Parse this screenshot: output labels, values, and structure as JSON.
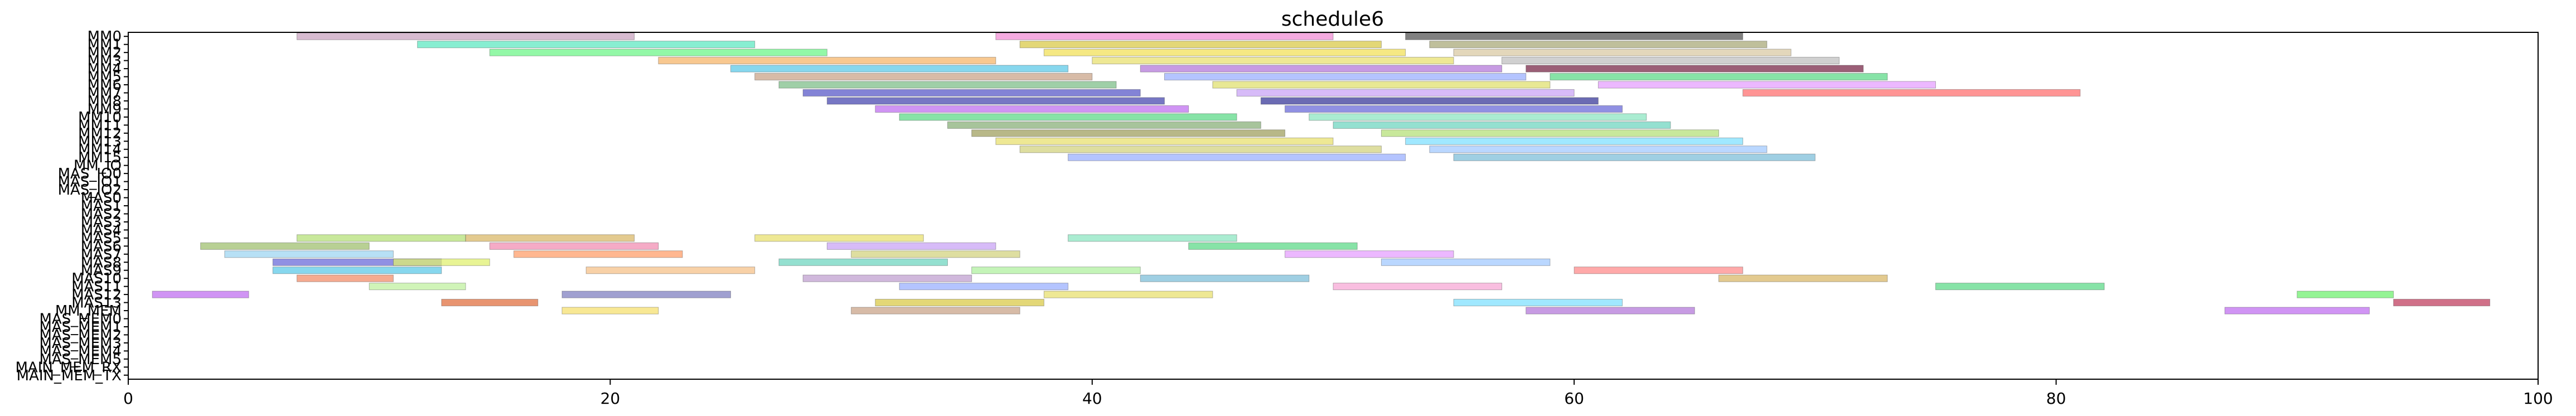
{
  "chart_data": {
    "type": "bar",
    "orientation": "horizontal",
    "title": "schedule6",
    "xlabel": "",
    "ylabel": "",
    "xlim": [
      0,
      100
    ],
    "x_ticks": [
      0,
      20,
      40,
      60,
      80,
      100
    ],
    "x_tick_labels": [
      "0",
      "20",
      "40",
      "60",
      "80",
      "100"
    ],
    "grid": false,
    "legend": "none",
    "rows": [
      "MM0",
      "MM1",
      "MM2",
      "MM3",
      "MM4",
      "MM5",
      "MM6",
      "MM7",
      "MM8",
      "MM9",
      "MM10",
      "MM11",
      "MM12",
      "MM13",
      "MM14",
      "MM15",
      "MM_IO",
      "MAS_IO0",
      "MAS_IO1",
      "MAS_IO2",
      "MAS0",
      "MAS1",
      "MAS2",
      "MAS3",
      "MAS4",
      "MAS5",
      "MAS6",
      "MAS7",
      "MAS8",
      "MAS9",
      "MAS10",
      "MAS11",
      "MAS12",
      "MAS13",
      "MM_MEM",
      "MAS_MEM0",
      "MAS_MEM1",
      "MAS_MEM2",
      "MAS_MEM3",
      "MAS_MEM4",
      "MAS_MEM5",
      "MAIN_MEM_RX",
      "MAIN_MEM_TX"
    ],
    "palette": [
      "#d5a3c8",
      "#7dffb1",
      "#5fd98a",
      "#c9a4f5",
      "#f7a8d6",
      "#d9b86a",
      "#9fd6f2",
      "#ff8c8c",
      "#b6e07a",
      "#e8e070",
      "#7fbfd9",
      "#f28fb3",
      "#a3c9ff",
      "#f5c28a",
      "#8ee6c2",
      "#c0c0c0",
      "#ff9f6b",
      "#9bb0ff",
      "#e6a0ff",
      "#70d6c0",
      "#d3d380",
      "#ffb3b3",
      "#80e0ff",
      "#b0f0a0"
    ],
    "tasks": [
      {
        "row": "MM0",
        "start": 7,
        "end": 21,
        "color": "#c9a4c0"
      },
      {
        "row": "MM0",
        "start": 36,
        "end": 50,
        "color": "#f28fd6"
      },
      {
        "row": "MM0",
        "start": 53,
        "end": 67,
        "color": "#555555"
      },
      {
        "row": "MM1",
        "start": 12,
        "end": 26,
        "color": "#5fe8c2"
      },
      {
        "row": "MM1",
        "start": 37,
        "end": 52,
        "color": "#d9c94a"
      },
      {
        "row": "MM1",
        "start": 54,
        "end": 68,
        "color": "#a9a97a"
      },
      {
        "row": "MM2",
        "start": 15,
        "end": 29,
        "color": "#6ff58a"
      },
      {
        "row": "MM2",
        "start": 38,
        "end": 53,
        "color": "#f2e05a"
      },
      {
        "row": "MM2",
        "start": 55,
        "end": 69,
        "color": "#d9c9a4"
      },
      {
        "row": "MM3",
        "start": 22,
        "end": 36,
        "color": "#f5b56b"
      },
      {
        "row": "MM3",
        "start": 40,
        "end": 55,
        "color": "#e8e070"
      },
      {
        "row": "MM3",
        "start": 57,
        "end": 71,
        "color": "#c0c0c0"
      },
      {
        "row": "MM4",
        "start": 25,
        "end": 39,
        "color": "#5fc9e8"
      },
      {
        "row": "MM4",
        "start": 42,
        "end": 57,
        "color": "#b47ad9"
      },
      {
        "row": "MM4",
        "start": 58,
        "end": 72,
        "color": "#7a2a4a"
      },
      {
        "row": "MM5",
        "start": 26,
        "end": 40,
        "color": "#c9a48a"
      },
      {
        "row": "MM5",
        "start": 43,
        "end": 58,
        "color": "#9bb0ff"
      },
      {
        "row": "MM5",
        "start": 59,
        "end": 73,
        "color": "#5fd98a"
      },
      {
        "row": "MM6",
        "start": 27,
        "end": 41,
        "color": "#7fbf8a"
      },
      {
        "row": "MM6",
        "start": 45,
        "end": 59,
        "color": "#e0e070"
      },
      {
        "row": "MM6",
        "start": 61,
        "end": 75,
        "color": "#e6a0ff"
      },
      {
        "row": "MM7",
        "start": 28,
        "end": 42,
        "color": "#5a5ac8"
      },
      {
        "row": "MM7",
        "start": 46,
        "end": 60,
        "color": "#c9a4f5"
      },
      {
        "row": "MM7",
        "start": 67,
        "end": 81,
        "color": "#ff7070"
      },
      {
        "row": "MM8",
        "start": 29,
        "end": 43,
        "color": "#4a4ab0"
      },
      {
        "row": "MM8",
        "start": 47,
        "end": 61,
        "color": "#3a3a9a"
      },
      {
        "row": "MM9",
        "start": 31,
        "end": 44,
        "color": "#c070f0"
      },
      {
        "row": "MM9",
        "start": 48,
        "end": 62,
        "color": "#6b6bd9"
      },
      {
        "row": "MM10",
        "start": 32,
        "end": 46,
        "color": "#5fd98a"
      },
      {
        "row": "MM10",
        "start": 49,
        "end": 63,
        "color": "#8ee6c2"
      },
      {
        "row": "MM11",
        "start": 34,
        "end": 47,
        "color": "#8ab07a"
      },
      {
        "row": "MM11",
        "start": 50,
        "end": 64,
        "color": "#70d6c0"
      },
      {
        "row": "MM12",
        "start": 35,
        "end": 48,
        "color": "#a0a060"
      },
      {
        "row": "MM12",
        "start": 52,
        "end": 66,
        "color": "#b6e07a"
      },
      {
        "row": "MM13",
        "start": 36,
        "end": 50,
        "color": "#e8e070"
      },
      {
        "row": "MM13",
        "start": 53,
        "end": 67,
        "color": "#80e0ff"
      },
      {
        "row": "MM14",
        "start": 37,
        "end": 52,
        "color": "#d3d380"
      },
      {
        "row": "MM14",
        "start": 54,
        "end": 68,
        "color": "#a3c9ff"
      },
      {
        "row": "MM15",
        "start": 39,
        "end": 53,
        "color": "#9bb0ff"
      },
      {
        "row": "MM15",
        "start": 55,
        "end": 70,
        "color": "#7fbfd9"
      },
      {
        "row": "MAS5",
        "start": 7,
        "end": 14,
        "color": "#b6e07a"
      },
      {
        "row": "MAS5",
        "start": 14,
        "end": 21,
        "color": "#d9b86a"
      },
      {
        "row": "MAS5",
        "start": 26,
        "end": 33,
        "color": "#e8e070"
      },
      {
        "row": "MAS5",
        "start": 39,
        "end": 46,
        "color": "#8ee6c2"
      },
      {
        "row": "MAS6",
        "start": 3,
        "end": 10,
        "color": "#a0c070"
      },
      {
        "row": "MAS6",
        "start": 15,
        "end": 22,
        "color": "#f28fb3"
      },
      {
        "row": "MAS6",
        "start": 29,
        "end": 36,
        "color": "#c9a4f5"
      },
      {
        "row": "MAS6",
        "start": 44,
        "end": 51,
        "color": "#5fd98a"
      },
      {
        "row": "MAS7",
        "start": 4,
        "end": 11,
        "color": "#9fd6f2"
      },
      {
        "row": "MAS7",
        "start": 16,
        "end": 23,
        "color": "#ff9f6b"
      },
      {
        "row": "MAS7",
        "start": 30,
        "end": 37,
        "color": "#d3d380"
      },
      {
        "row": "MAS7",
        "start": 48,
        "end": 55,
        "color": "#e6a0ff"
      },
      {
        "row": "MAS8",
        "start": 6,
        "end": 13,
        "color": "#6b6bd9"
      },
      {
        "row": "MAS8",
        "start": 11,
        "end": 15,
        "color": "#e0f070"
      },
      {
        "row": "MAS8",
        "start": 27,
        "end": 34,
        "color": "#70d6c0"
      },
      {
        "row": "MAS8",
        "start": 52,
        "end": 59,
        "color": "#a3c9ff"
      },
      {
        "row": "MAS9",
        "start": 6,
        "end": 13,
        "color": "#5fc9e8"
      },
      {
        "row": "MAS9",
        "start": 19,
        "end": 26,
        "color": "#f5c28a"
      },
      {
        "row": "MAS9",
        "start": 35,
        "end": 42,
        "color": "#b0f0a0"
      },
      {
        "row": "MAS9",
        "start": 60,
        "end": 67,
        "color": "#ff8c8c"
      },
      {
        "row": "MAS10",
        "start": 7,
        "end": 11,
        "color": "#f28f6b"
      },
      {
        "row": "MAS10",
        "start": 28,
        "end": 35,
        "color": "#c0a0d0"
      },
      {
        "row": "MAS10",
        "start": 42,
        "end": 49,
        "color": "#7fbfd9"
      },
      {
        "row": "MAS10",
        "start": 66,
        "end": 73,
        "color": "#d9b86a"
      },
      {
        "row": "MAS11",
        "start": 10,
        "end": 14,
        "color": "#c0f0a0"
      },
      {
        "row": "MAS11",
        "start": 32,
        "end": 39,
        "color": "#9bb0ff"
      },
      {
        "row": "MAS11",
        "start": 50,
        "end": 57,
        "color": "#f7a8d6"
      },
      {
        "row": "MAS11",
        "start": 75,
        "end": 82,
        "color": "#5fd98a"
      },
      {
        "row": "MAS12",
        "start": 1,
        "end": 5,
        "color": "#c070f0"
      },
      {
        "row": "MAS12",
        "start": 18,
        "end": 25,
        "color": "#8080c0"
      },
      {
        "row": "MAS12",
        "start": 38,
        "end": 45,
        "color": "#e8e070"
      },
      {
        "row": "MAS12",
        "start": 90,
        "end": 94,
        "color": "#70f070"
      },
      {
        "row": "MAS13",
        "start": 13,
        "end": 17,
        "color": "#e07040"
      },
      {
        "row": "MAS13",
        "start": 31,
        "end": 38,
        "color": "#d9c94a"
      },
      {
        "row": "MAS13",
        "start": 55,
        "end": 62,
        "color": "#80e0ff"
      },
      {
        "row": "MAS13",
        "start": 94,
        "end": 98,
        "color": "#c04060"
      },
      {
        "row": "MM_MEM",
        "start": 18,
        "end": 22,
        "color": "#f5e070"
      },
      {
        "row": "MM_MEM",
        "start": 30,
        "end": 37,
        "color": "#c9a48a"
      },
      {
        "row": "MM_MEM",
        "start": 58,
        "end": 65,
        "color": "#b47ad9"
      },
      {
        "row": "MM_MEM",
        "start": 87,
        "end": 93,
        "color": "#c070f0"
      }
    ]
  }
}
